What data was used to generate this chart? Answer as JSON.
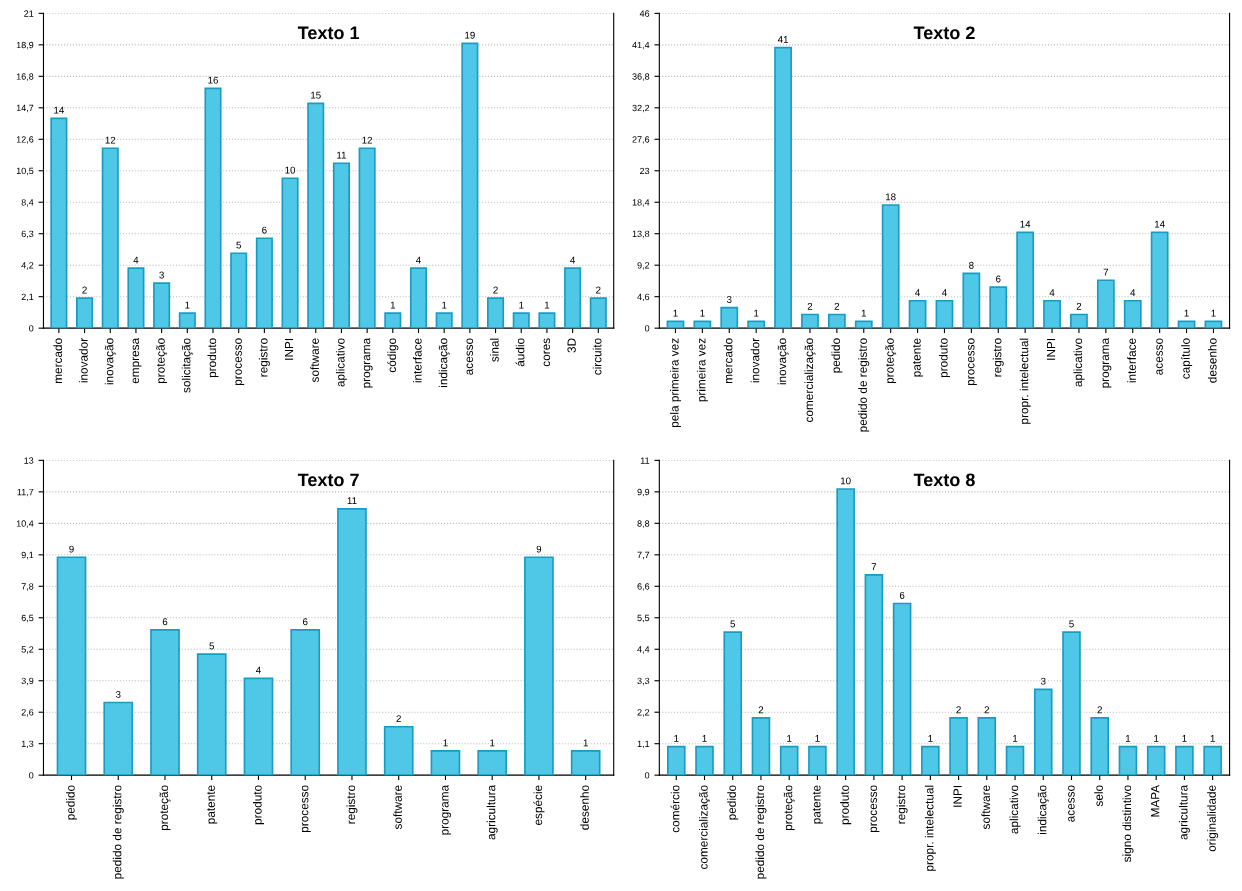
{
  "chart_data": [
    {
      "type": "bar",
      "title": "Texto 1",
      "categories": [
        "mercado",
        "inovador",
        "inovação",
        "empresa",
        "proteção",
        "solicitação",
        "produto",
        "processo",
        "registro",
        "INPI",
        "software",
        "aplicativo",
        "programa",
        "código",
        "interface",
        "indicação",
        "acesso",
        "sinal",
        "áudio",
        "cores",
        "3D",
        "circuito"
      ],
      "values": [
        14,
        2,
        12,
        4,
        3,
        1,
        16,
        5,
        6,
        10,
        15,
        11,
        12,
        1,
        4,
        1,
        19,
        2,
        1,
        1,
        4,
        2
      ],
      "color": "#4fc8e8",
      "ylim": [
        0,
        21
      ],
      "yticks": [
        0,
        {
          "value": 2.1,
          "label": "2,1"
        },
        {
          "value": 4.2,
          "label": "4,2"
        },
        {
          "value": 6.3,
          "label": "6,3"
        },
        {
          "value": 8.4,
          "label": "8,4"
        },
        {
          "value": 10.5,
          "label": "10,5"
        },
        {
          "value": 12.6,
          "label": "12,6"
        },
        {
          "value": 14.7,
          "label": "14,7"
        },
        {
          "value": 16.8,
          "label": "16,8"
        },
        {
          "value": 18.9,
          "label": "18,9"
        },
        21
      ],
      "grid": "y",
      "data_labels": true
    },
    {
      "type": "bar",
      "title": "Texto 2",
      "categories": [
        "pela primeira vez",
        "primeira vez",
        "mercado",
        "inovador",
        "inovação",
        "comercialização",
        "pedido",
        "pedido de registro",
        "proteção",
        "patente",
        "produto",
        "processo",
        "registro",
        "propr. intelectual",
        "INPI",
        "aplicativo",
        "programa",
        "interface",
        "acesso",
        "capítulo",
        "desenho"
      ],
      "values": [
        1,
        1,
        3,
        1,
        41,
        2,
        2,
        1,
        18,
        4,
        4,
        8,
        6,
        14,
        4,
        2,
        7,
        4,
        14,
        1,
        1
      ],
      "color": "#4fc8e8",
      "ylim": [
        0,
        46
      ],
      "yticks": [
        0,
        {
          "value": 4.6,
          "label": "4,6"
        },
        {
          "value": 9.2,
          "label": "9,2"
        },
        {
          "value": 13.8,
          "label": "13,8"
        },
        {
          "value": 18.4,
          "label": "18,4"
        },
        23,
        {
          "value": 27.6,
          "label": "27,6"
        },
        {
          "value": 32.2,
          "label": "32,2"
        },
        {
          "value": 36.8,
          "label": "36,8"
        },
        {
          "value": 41.4,
          "label": "41,4"
        },
        46
      ],
      "grid": "y",
      "data_labels": true
    },
    {
      "type": "bar",
      "title": "Texto 7",
      "categories": [
        "pedido",
        "pedido de registro",
        "proteção",
        "patente",
        "produto",
        "processo",
        "registro",
        "software",
        "programa",
        "agricultura",
        "espécie",
        "desenho"
      ],
      "values": [
        9,
        3,
        6,
        5,
        4,
        6,
        11,
        2,
        1,
        1,
        9,
        1
      ],
      "color": "#4fc8e8",
      "ylim": [
        0,
        13
      ],
      "yticks": [
        0,
        {
          "value": 1.3,
          "label": "1,3"
        },
        {
          "value": 2.6,
          "label": "2,6"
        },
        {
          "value": 3.9,
          "label": "3,9"
        },
        {
          "value": 5.2,
          "label": "5,2"
        },
        {
          "value": 6.5,
          "label": "6,5"
        },
        {
          "value": 7.8,
          "label": "7,8"
        },
        {
          "value": 9.1,
          "label": "9,1"
        },
        {
          "value": 10.4,
          "label": "10,4"
        },
        {
          "value": 11.7,
          "label": "11,7"
        },
        13
      ],
      "grid": "y",
      "data_labels": true
    },
    {
      "type": "bar",
      "title": "Texto 8",
      "categories": [
        "comércio",
        "comercialização",
        "pedido",
        "pedido de registro",
        "proteção",
        "patente",
        "produto",
        "processo",
        "registro",
        "propr. intelectual",
        "INPI",
        "software",
        "aplicativo",
        "indicação",
        "acesso",
        "selo",
        "signo distintivo",
        "MAPA",
        "agricultura",
        "originalidade"
      ],
      "values": [
        1,
        1,
        5,
        2,
        1,
        1,
        10,
        7,
        6,
        1,
        2,
        2,
        1,
        3,
        5,
        2,
        1,
        1,
        1,
        1
      ],
      "color": "#4fc8e8",
      "ylim": [
        0,
        11
      ],
      "yticks": [
        0,
        {
          "value": 1.1,
          "label": "1,1"
        },
        {
          "value": 2.2,
          "label": "2,2"
        },
        {
          "value": 3.3,
          "label": "3,3"
        },
        {
          "value": 4.4,
          "label": "4,4"
        },
        {
          "value": 5.5,
          "label": "5,5"
        },
        {
          "value": 6.6,
          "label": "6,6"
        },
        {
          "value": 7.7,
          "label": "7,7"
        },
        {
          "value": 8.8,
          "label": "8,8"
        },
        {
          "value": 9.9,
          "label": "9,9"
        },
        11
      ],
      "grid": "y",
      "data_labels": true
    }
  ]
}
